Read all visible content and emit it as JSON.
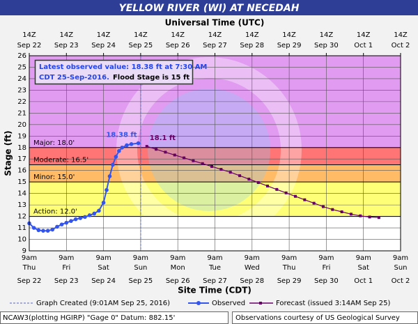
{
  "chart_data": {
    "type": "hydrograph",
    "title": "YELLOW RIVER (WI) AT NECEDAH",
    "top_axis_title": "Universal Time (UTC)",
    "x_title": "Site Time (CDT)",
    "y_title": "Stage (ft)",
    "ylim": [
      9,
      26
    ],
    "yticks": [
      9,
      10,
      11,
      12,
      13,
      14,
      15,
      16,
      17,
      18,
      19,
      20,
      21,
      22,
      23,
      24,
      25,
      26
    ],
    "xlim": [
      "2016-09-22T09:00",
      "2016-10-02T09:00"
    ],
    "xticks": [
      {
        "value": "2016-09-22T09:00",
        "label": "9am"
      },
      {
        "value": "2016-09-23T09:00",
        "label": "9am"
      },
      {
        "value": "2016-09-24T09:00",
        "label": "9am"
      },
      {
        "value": "2016-09-25T09:00",
        "label": "9am"
      },
      {
        "value": "2016-09-26T09:00",
        "label": "9am"
      },
      {
        "value": "2016-09-27T09:00",
        "label": "9am"
      },
      {
        "value": "2016-09-28T09:00",
        "label": "9am"
      },
      {
        "value": "2016-09-29T09:00",
        "label": "9am"
      },
      {
        "value": "2016-09-30T09:00",
        "label": "9am"
      },
      {
        "value": "2016-10-01T09:00",
        "label": "9am"
      },
      {
        "value": "2016-10-02T09:00",
        "label": "9am"
      }
    ],
    "x_tick_weekdays": [
      "Thu",
      "Fri",
      "Sat",
      "Sun",
      "Mon",
      "Tue",
      "Wed",
      "Thu",
      "Fri",
      "Sat",
      "Sun"
    ],
    "x_tick_dates": [
      "Sep 22",
      "Sep 23",
      "Sep 24",
      "Sep 25",
      "Sep 26",
      "Sep 27",
      "Sep 28",
      "Sep 29",
      "Sep 30",
      "Oct 1",
      "Oct 2"
    ],
    "x2ticks": [
      {
        "value": "2016-09-22T09:00",
        "label": "14Z"
      },
      {
        "value": "2016-09-23T09:00",
        "label": "14Z"
      },
      {
        "value": "2016-09-24T09:00",
        "label": "14Z"
      },
      {
        "value": "2016-09-25T09:00",
        "label": "14Z"
      },
      {
        "value": "2016-09-26T09:00",
        "label": "14Z"
      },
      {
        "value": "2016-09-27T09:00",
        "label": "14Z"
      },
      {
        "value": "2016-09-28T09:00",
        "label": "14Z"
      },
      {
        "value": "2016-09-29T09:00",
        "label": "14Z"
      },
      {
        "value": "2016-09-30T09:00",
        "label": "14Z"
      },
      {
        "value": "2016-10-01T09:00",
        "label": "14Z"
      },
      {
        "value": "2016-10-02T09:00",
        "label": "14Z"
      }
    ],
    "x2_tick_dates": [
      "Sep 22",
      "Sep 23",
      "Sep 24",
      "Sep 25",
      "Sep 26",
      "Sep 27",
      "Sep 28",
      "Sep 29",
      "Sep 30",
      "Oct 1",
      "Oct 2"
    ],
    "grid": true,
    "stages": [
      {
        "label": "Major: 18.0'",
        "value": 18.0,
        "color": "#e19bf0"
      },
      {
        "label": "Moderate: 16.5'",
        "value": 16.5,
        "color": "#ff7474"
      },
      {
        "label": "Minor: 15.0'",
        "value": 15.0,
        "color": "#ffbb66"
      },
      {
        "label": "Action: 12.0'",
        "value": 12.0,
        "color": "#ffff77"
      }
    ],
    "created_time": "2016-09-25T09:01",
    "series": [
      {
        "name": "Observed",
        "color": "#3355ee",
        "x": [
          "2016-09-22T09:00",
          "2016-09-22T12:00",
          "2016-09-22T15:00",
          "2016-09-22T18:00",
          "2016-09-22T21:00",
          "2016-09-23T00:00",
          "2016-09-23T03:00",
          "2016-09-23T06:00",
          "2016-09-23T09:00",
          "2016-09-23T12:00",
          "2016-09-23T15:00",
          "2016-09-23T18:00",
          "2016-09-23T21:00",
          "2016-09-24T00:00",
          "2016-09-24T03:00",
          "2016-09-24T06:00",
          "2016-09-24T09:00",
          "2016-09-24T11:00",
          "2016-09-24T13:00",
          "2016-09-24T15:00",
          "2016-09-24T17:00",
          "2016-09-24T19:00",
          "2016-09-24T21:00",
          "2016-09-25T00:00",
          "2016-09-25T03:00",
          "2016-09-25T07:30"
        ],
        "values": [
          11.4,
          11.0,
          10.8,
          10.75,
          10.75,
          10.85,
          11.1,
          11.3,
          11.45,
          11.6,
          11.75,
          11.85,
          11.95,
          12.1,
          12.25,
          12.5,
          13.2,
          14.3,
          15.5,
          16.5,
          17.2,
          17.7,
          18.0,
          18.2,
          18.3,
          18.38
        ],
        "value_labels": [
          null,
          null,
          null,
          null,
          null,
          null,
          null,
          null,
          null,
          null,
          null,
          null,
          null,
          null,
          null,
          null,
          null,
          null,
          null,
          null,
          null,
          null,
          null,
          null,
          null,
          "18.38 ft"
        ]
      },
      {
        "name": "Forecast (issued 3:14AM Sep 25)",
        "color": "#660066",
        "x": [
          "2016-09-25T13:00",
          "2016-09-25T19:00",
          "2016-09-26T01:00",
          "2016-09-26T07:00",
          "2016-09-26T13:00",
          "2016-09-26T19:00",
          "2016-09-27T01:00",
          "2016-09-27T07:00",
          "2016-09-27T13:00",
          "2016-09-27T19:00",
          "2016-09-28T01:00",
          "2016-09-28T07:00",
          "2016-09-28T13:00",
          "2016-09-28T19:00",
          "2016-09-29T01:00",
          "2016-09-29T07:00",
          "2016-09-29T13:00",
          "2016-09-29T19:00",
          "2016-09-30T01:00",
          "2016-09-30T07:00",
          "2016-09-30T13:00",
          "2016-09-30T19:00",
          "2016-10-01T01:00",
          "2016-10-01T07:00",
          "2016-10-01T13:00",
          "2016-10-01T19:00"
        ],
        "values": [
          18.1,
          17.85,
          17.6,
          17.35,
          17.1,
          16.85,
          16.6,
          16.35,
          16.1,
          15.85,
          15.55,
          15.25,
          14.95,
          14.65,
          14.35,
          14.05,
          13.75,
          13.45,
          13.15,
          12.85,
          12.6,
          12.4,
          12.2,
          12.05,
          11.95,
          11.9
        ],
        "value_labels": [
          "18.1 ft",
          null,
          null,
          null,
          null,
          null,
          null,
          null,
          null,
          null,
          null,
          null,
          null,
          null,
          null,
          null,
          null,
          null,
          null,
          null,
          null,
          null,
          null,
          null,
          null,
          null
        ]
      }
    ],
    "legend_created": "Graph Created (9:01AM Sep 25, 2016)",
    "legend_observed": "Observed",
    "info_line1": "Latest observed value: 18.38 ft at 7:30 AM",
    "info_line2": "CDT 25-Sep-2016.",
    "info_flood": "Flood Stage is 15 ft",
    "footer_left": "NCAW3(plotting HGIRP) \"Gage 0\" Datum: 882.15'",
    "footer_right": "Observations courtesy of US Geological Survey"
  }
}
